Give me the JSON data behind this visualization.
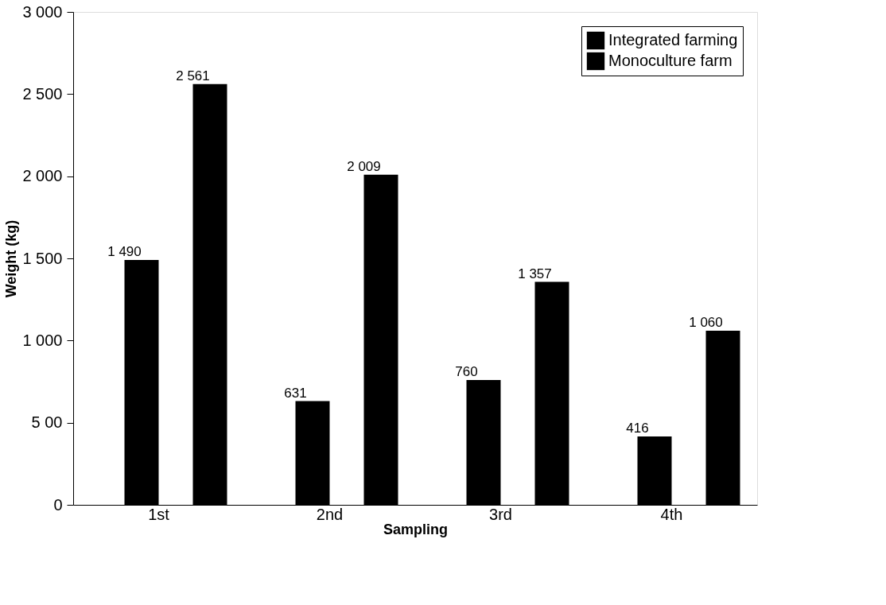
{
  "chart_data": {
    "type": "bar",
    "xlabel": "Sampling",
    "ylabel": "Weight (kg)",
    "categories": [
      "1st",
      "2nd",
      "3rd",
      "4th"
    ],
    "series": [
      {
        "name": "Integrated farming",
        "color": "#000000",
        "values": [
          1490,
          631,
          760,
          416
        ],
        "value_labels": [
          "1 490",
          "631",
          "760",
          "416"
        ]
      },
      {
        "name": "Monoculture farm",
        "color": "#000000",
        "values": [
          2561,
          2009,
          1357,
          1060
        ],
        "value_labels": [
          "2 561",
          "2 009",
          "1 357",
          "1 060"
        ]
      }
    ],
    "ylim": [
      0,
      3000
    ],
    "yticks": [
      0,
      {
        "value": 500,
        "label": "5 00"
      },
      {
        "value": 1000,
        "label": "1 000"
      },
      {
        "value": 1500,
        "label": "1 500"
      },
      {
        "value": 2000,
        "label": "2 000"
      },
      {
        "value": 2500,
        "label": "2 500"
      },
      {
        "value": 3000,
        "label": "3 000"
      }
    ],
    "grid": false,
    "legend": "top right"
  }
}
